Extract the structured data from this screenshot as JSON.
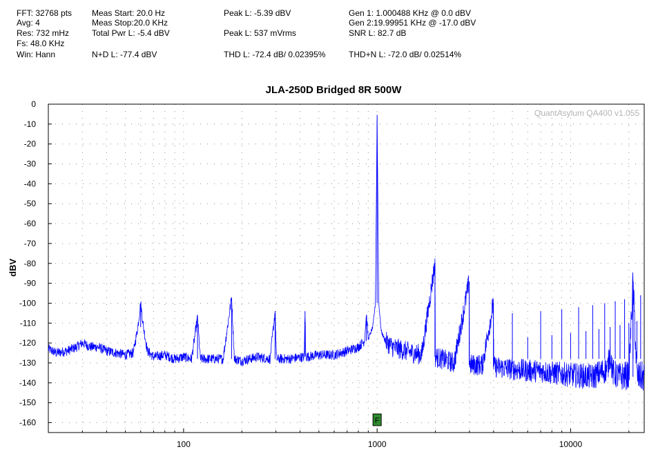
{
  "stats": {
    "fft": "FFT: 32768 pts",
    "avg": "Avg: 4",
    "res": "Res: 732 mHz",
    "fs": "Fs: 48.0 KHz",
    "win": "Win: Hann",
    "meas_start": "Meas Start: 20.0 Hz",
    "meas_stop": "Meas Stop:20.0 KHz",
    "total_pwr": "Total Pwr L: -5.4 dBV",
    "nd": "N+D L: -77.4 dBV",
    "peak_dbv": "Peak L: -5.39 dBV",
    "peak_mv": "Peak L: 537 mVrms",
    "thd": "THD L: -72.4 dB/ 0.02395%",
    "gen1": "Gen 1: 1.000488 KHz @ 0.0  dBV",
    "gen2": "Gen 2:19.99951 KHz @ -17.0  dBV",
    "snr": "SNR L: 82.7 dB",
    "thdn": "THD+N L: -72.0 dB/ 0.02514%"
  },
  "watermark": "QuantAsylum QA400 v1.055",
  "marker_label": "F",
  "colors": {
    "trace": "#0000ff",
    "marker": "#2e8b2e",
    "grid": "#8c8c8c"
  },
  "chart_data": {
    "type": "line",
    "title": "JLA-250D Bridged 8R 500W",
    "xlabel": "",
    "ylabel": "dBV",
    "x_scale": "log",
    "xlim": [
      20,
      24000
    ],
    "ylim": [
      -165,
      0
    ],
    "x_ticks": [
      100,
      1000,
      10000
    ],
    "y_ticks": [
      0,
      -10,
      -20,
      -30,
      -40,
      -50,
      -60,
      -70,
      -80,
      -90,
      -100,
      -110,
      -120,
      -130,
      -140,
      -150,
      -160
    ],
    "grid": true,
    "marker": {
      "label": "F",
      "x": 1000
    },
    "series": [
      {
        "points": [
          [
            20,
            -123
          ],
          [
            22,
            -125
          ],
          [
            25,
            -124
          ],
          [
            28,
            -122
          ],
          [
            30,
            -120
          ],
          [
            33,
            -122
          ],
          [
            36,
            -122
          ],
          [
            40,
            -124
          ],
          [
            45,
            -125
          ],
          [
            50,
            -126
          ],
          [
            55,
            -125
          ],
          [
            58,
            -112
          ],
          [
            60,
            -100
          ],
          [
            62,
            -112
          ],
          [
            65,
            -124
          ],
          [
            70,
            -127
          ],
          [
            80,
            -126
          ],
          [
            90,
            -128
          ],
          [
            100,
            -127
          ],
          [
            110,
            -128
          ],
          [
            118,
            -107
          ],
          [
            122,
            -128
          ],
          [
            140,
            -128
          ],
          [
            160,
            -128
          ],
          [
            177,
            -97
          ],
          [
            183,
            -128
          ],
          [
            200,
            -129
          ],
          [
            240,
            -127
          ],
          [
            280,
            -128
          ],
          [
            297,
            -104
          ],
          [
            302,
            -128
          ],
          [
            350,
            -128
          ],
          [
            420,
            -127
          ],
          [
            424,
            -104
          ],
          [
            428,
            -127
          ],
          [
            500,
            -126
          ],
          [
            600,
            -126
          ],
          [
            700,
            -124
          ],
          [
            800,
            -122
          ],
          [
            860,
            -119
          ],
          [
            880,
            -106
          ],
          [
            900,
            -118
          ],
          [
            950,
            -112
          ],
          [
            980,
            -100
          ],
          [
            1000,
            -5.4
          ],
          [
            1020,
            -100
          ],
          [
            1050,
            -114
          ],
          [
            1100,
            -119
          ],
          [
            1200,
            -122
          ],
          [
            1400,
            -124
          ],
          [
            1700,
            -126
          ],
          [
            1990,
            -80
          ],
          [
            2000,
            -127
          ],
          [
            2500,
            -130
          ],
          [
            2990,
            -89
          ],
          [
            3000,
            -131
          ],
          [
            3500,
            -131
          ],
          [
            3990,
            -100
          ],
          [
            4000,
            -132
          ],
          [
            5000,
            -133
          ],
          [
            6000,
            -134
          ],
          [
            7000,
            -134
          ],
          [
            8000,
            -135
          ],
          [
            10000,
            -136
          ],
          [
            13000,
            -137
          ],
          [
            15500,
            -133
          ],
          [
            16000,
            -125
          ],
          [
            16500,
            -135
          ],
          [
            18000,
            -137
          ],
          [
            20000,
            -136
          ],
          [
            21000,
            -89
          ],
          [
            22000,
            -137
          ],
          [
            24000,
            -137
          ]
        ]
      }
    ]
  }
}
